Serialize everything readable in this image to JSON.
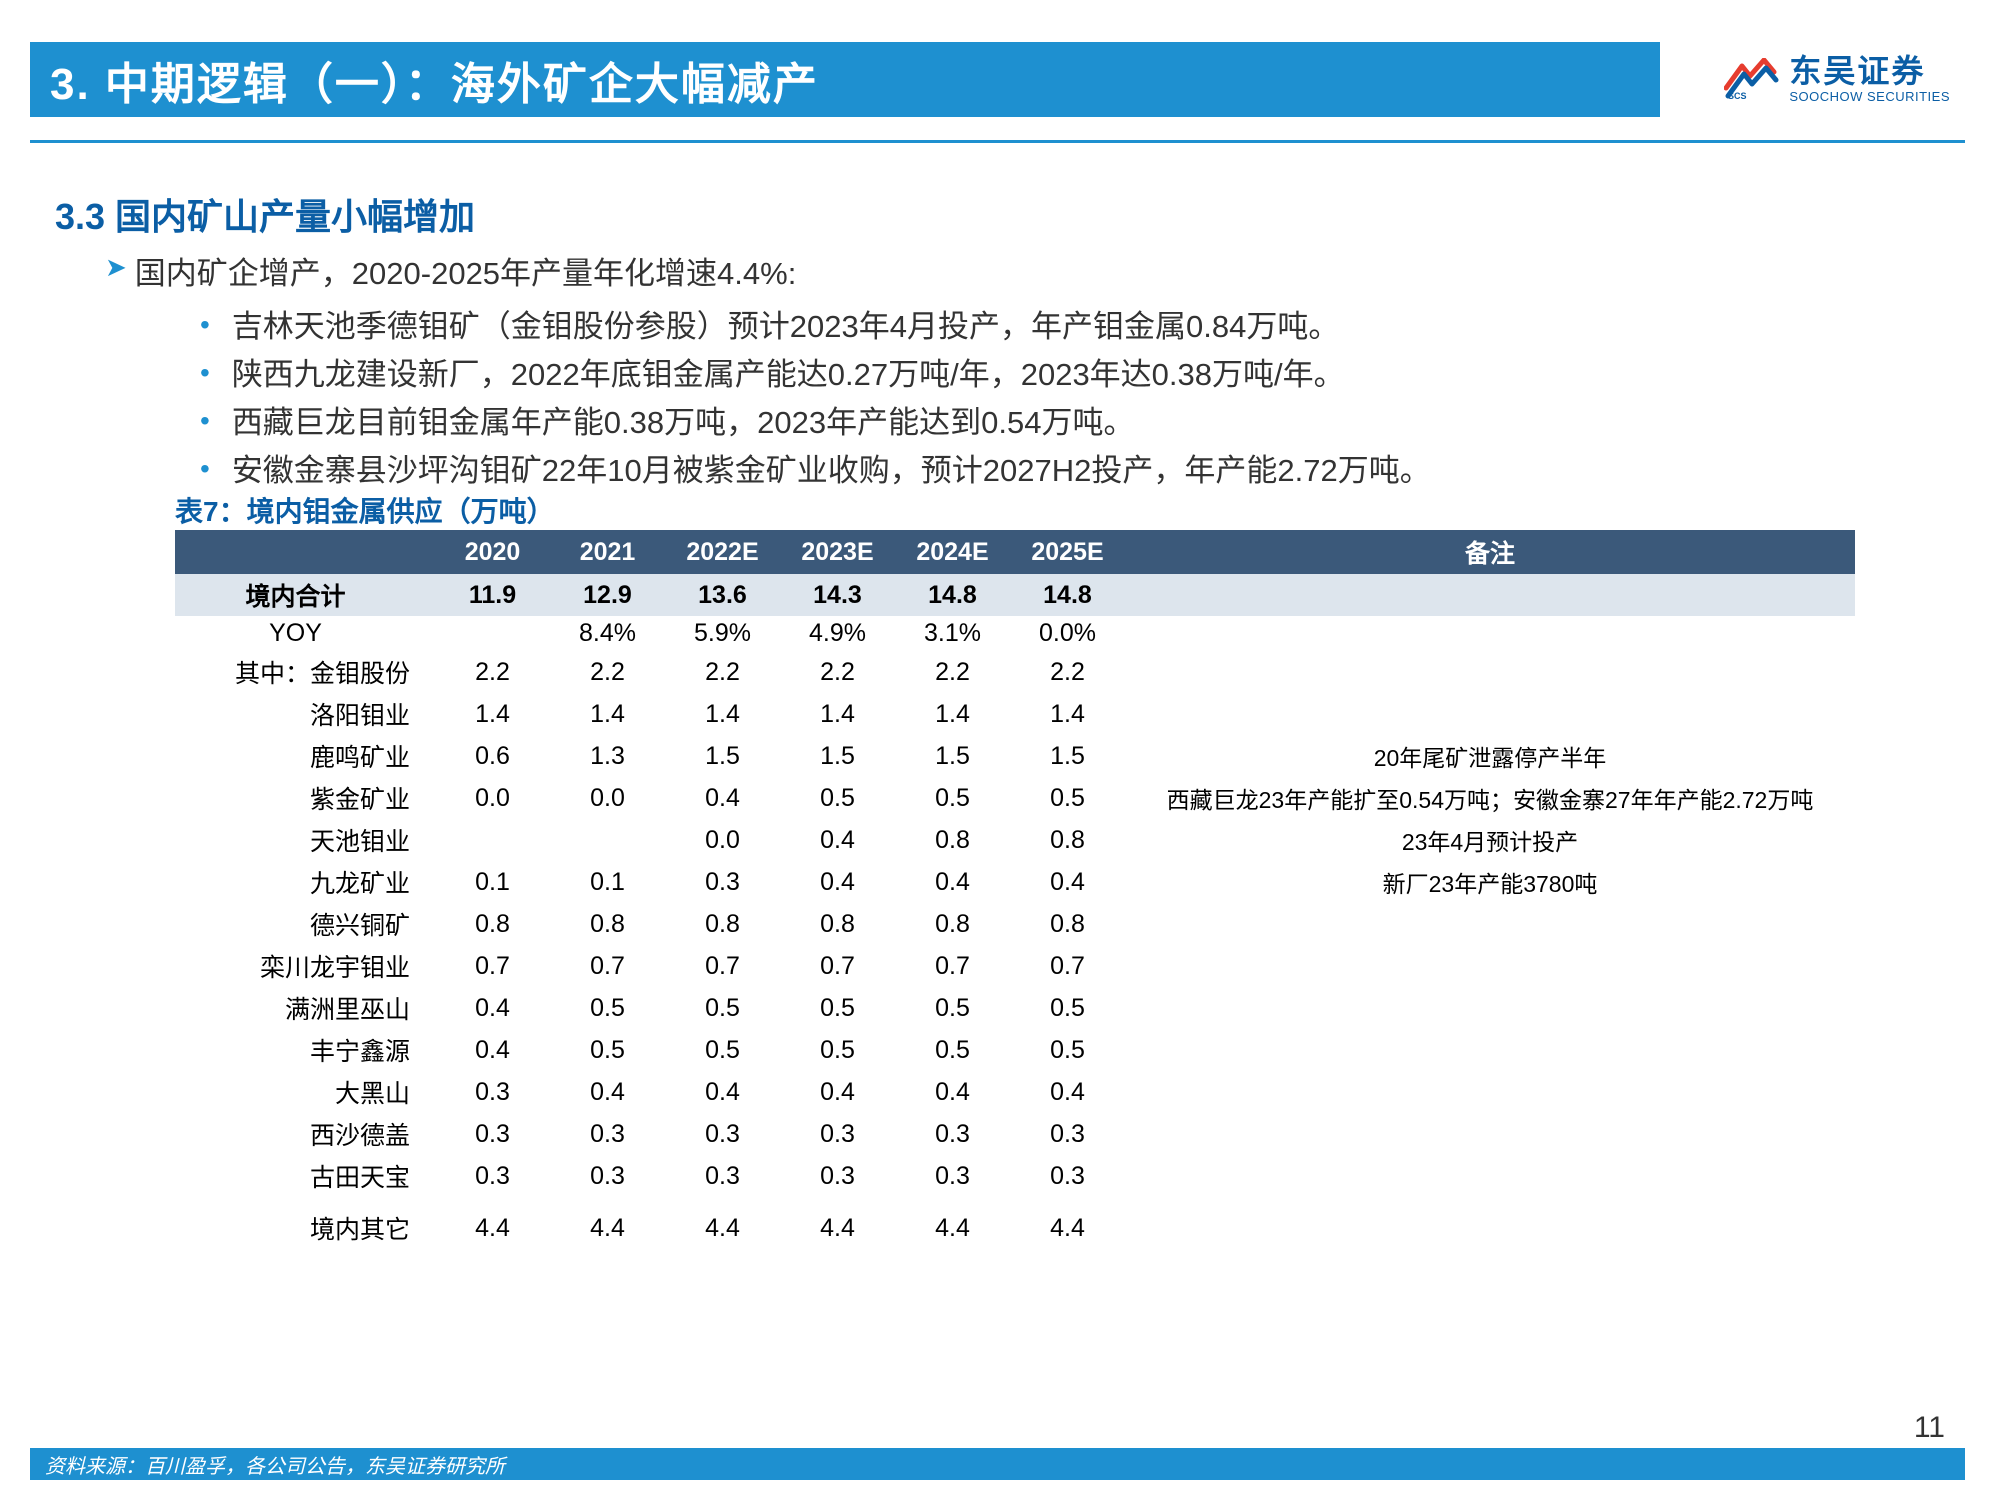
{
  "title": "3. 中期逻辑（一）：海外矿企大幅减产",
  "logo": {
    "cn": "东吴证券",
    "en": "SOOCHOW SECURITIES"
  },
  "section_heading": "3.3 国内矿山产量小幅增加",
  "lead": "国内矿企增产，2020-2025年产量年化增速4.4%:",
  "bullets": [
    "吉林天池季德钼矿（金钼股份参股）预计2023年4月投产，年产钼金属0.84万吨。",
    "陕西九龙建设新厂，2022年底钼金属产能达0.27万吨/年，2023年达0.38万吨/年。",
    "西藏巨龙目前钼金属年产能0.38万吨，2023年产能达到0.54万吨。",
    "安徽金寨县沙坪沟钼矿22年10月被紫金矿业收购，预计2027H2投产，年产能2.72万吨。"
  ],
  "table": {
    "caption": "表7：境内钼金属供应（万吨）",
    "columns": [
      "",
      "2020",
      "2021",
      "2022E",
      "2023E",
      "2024E",
      "2025E",
      "备注"
    ],
    "total_row": {
      "label": "境内合计",
      "vals": [
        "11.9",
        "12.9",
        "13.6",
        "14.3",
        "14.8",
        "14.8"
      ],
      "note": ""
    },
    "yoy_row": {
      "label": "YOY",
      "vals": [
        "",
        "8.4%",
        "5.9%",
        "4.9%",
        "3.1%",
        "0.0%"
      ],
      "note": ""
    },
    "rows": [
      {
        "label": "其中：金钼股份",
        "vals": [
          "2.2",
          "2.2",
          "2.2",
          "2.2",
          "2.2",
          "2.2"
        ],
        "note": ""
      },
      {
        "label": "洛阳钼业",
        "vals": [
          "1.4",
          "1.4",
          "1.4",
          "1.4",
          "1.4",
          "1.4"
        ],
        "note": ""
      },
      {
        "label": "鹿鸣矿业",
        "vals": [
          "0.6",
          "1.3",
          "1.5",
          "1.5",
          "1.5",
          "1.5"
        ],
        "note": "20年尾矿泄露停产半年"
      },
      {
        "label": "紫金矿业",
        "vals": [
          "0.0",
          "0.0",
          "0.4",
          "0.5",
          "0.5",
          "0.5"
        ],
        "note": "西藏巨龙23年产能扩至0.54万吨；安徽金寨27年年产能2.72万吨"
      },
      {
        "label": "天池钼业",
        "vals": [
          "",
          "",
          "0.0",
          "0.4",
          "0.8",
          "0.8"
        ],
        "note": "23年4月预计投产"
      },
      {
        "label": "九龙矿业",
        "vals": [
          "0.1",
          "0.1",
          "0.3",
          "0.4",
          "0.4",
          "0.4"
        ],
        "note": "新厂23年产能3780吨"
      },
      {
        "label": "德兴铜矿",
        "vals": [
          "0.8",
          "0.8",
          "0.8",
          "0.8",
          "0.8",
          "0.8"
        ],
        "note": ""
      },
      {
        "label": "栾川龙宇钼业",
        "vals": [
          "0.7",
          "0.7",
          "0.7",
          "0.7",
          "0.7",
          "0.7"
        ],
        "note": ""
      },
      {
        "label": "满洲里巫山",
        "vals": [
          "0.4",
          "0.5",
          "0.5",
          "0.5",
          "0.5",
          "0.5"
        ],
        "note": ""
      },
      {
        "label": "丰宁鑫源",
        "vals": [
          "0.4",
          "0.5",
          "0.5",
          "0.5",
          "0.5",
          "0.5"
        ],
        "note": ""
      },
      {
        "label": "大黑山",
        "vals": [
          "0.3",
          "0.4",
          "0.4",
          "0.4",
          "0.4",
          "0.4"
        ],
        "note": ""
      },
      {
        "label": "西沙德盖",
        "vals": [
          "0.3",
          "0.3",
          "0.3",
          "0.3",
          "0.3",
          "0.3"
        ],
        "note": ""
      },
      {
        "label": "古田天宝",
        "vals": [
          "0.3",
          "0.3",
          "0.3",
          "0.3",
          "0.3",
          "0.3"
        ],
        "note": ""
      }
    ],
    "other_row": {
      "label": "境内其它",
      "vals": [
        "4.4",
        "4.4",
        "4.4",
        "4.4",
        "4.4",
        "4.4"
      ],
      "note": ""
    }
  },
  "footer": "资料来源：百川盈孚，各公司公告，东吴证券研究所",
  "page": "11",
  "colors": {
    "brand_blue": "#1e90d0",
    "dark_blue": "#0b5ea5",
    "table_header": "#3b597a",
    "table_total_bg": "#dde5ed"
  }
}
